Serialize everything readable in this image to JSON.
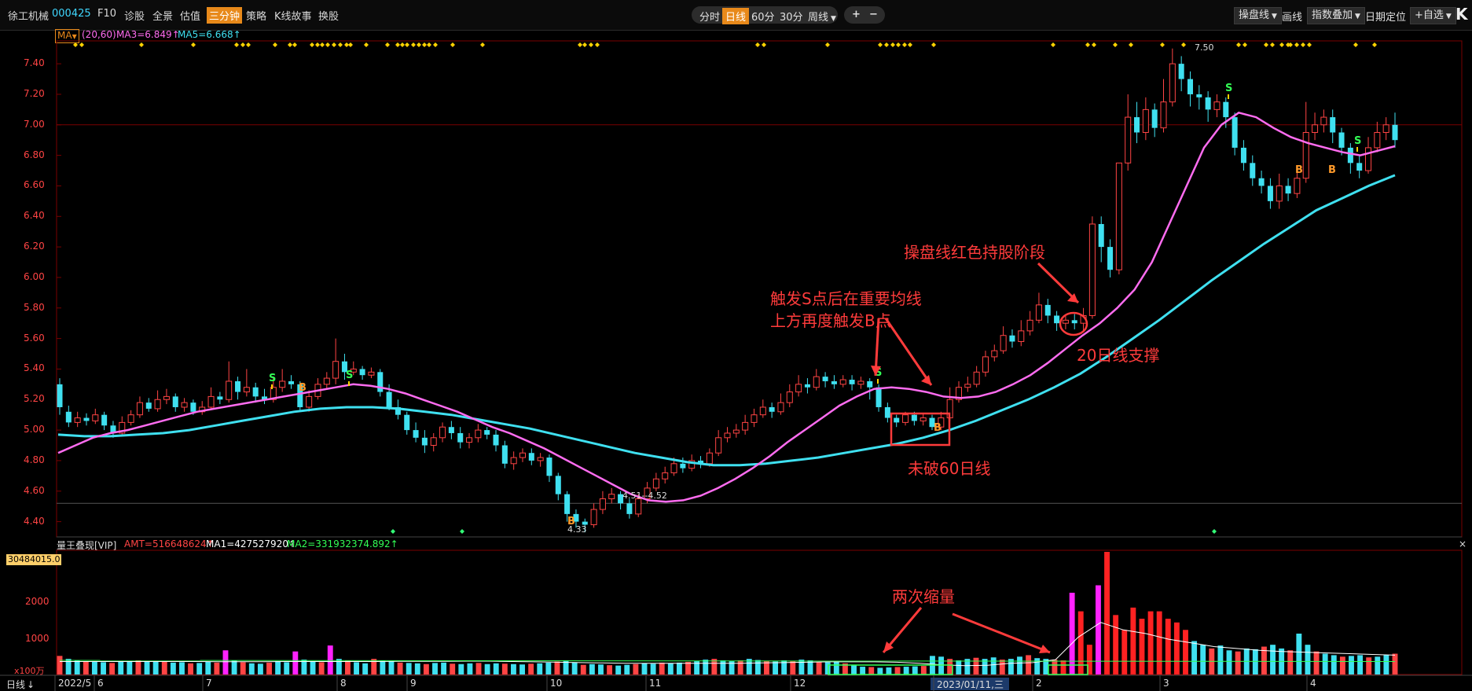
{
  "toolbar": {
    "stock_name": "徐工机械",
    "stock_code": "000425",
    "items": [
      "F10",
      "诊股",
      "全景",
      "估值",
      "三分钟",
      "策略",
      "K线故事",
      "换股"
    ],
    "active_item": "三分钟"
  },
  "period_bar": {
    "items": [
      "分时",
      "日线",
      "60分",
      "30分",
      "周线"
    ],
    "active": "日线",
    "dropdown_label": "周线",
    "zoom_in": "+",
    "zoom_out": "−"
  },
  "right_tools": {
    "draw_lines_label": "操盘线",
    "draw_label": "画线",
    "index_overlay_label": "指数叠加",
    "date_locate_label": "日期定位",
    "watchlist_label": "+自选"
  },
  "indicator_bar": {
    "ma_button": "MA",
    "params": "(20,60)",
    "ma3": "MA3=6.849↑",
    "ma5": "MA5=6.668↑"
  },
  "price_axis": [
    "7.40",
    "7.20",
    "7.00",
    "6.80",
    "6.60",
    "6.40",
    "6.20",
    "6.00",
    "5.80",
    "5.60",
    "5.40",
    "5.20",
    "5.00",
    "4.80",
    "4.60",
    "4.40"
  ],
  "price_labels": {
    "high": "7.50",
    "low": "4.33",
    "mid": "4.51--4.52"
  },
  "annotations": {
    "holding_stage": "操盘线红色持股阶段",
    "trigger_text_1": "触发S点后在重要均线",
    "trigger_text_2": "上方再度触发B点",
    "support_20": "20日线支撑",
    "not_break_60": "未破60日线",
    "two_shrink": "两次缩量"
  },
  "signal_letters": {
    "sell": "S",
    "buy": "B"
  },
  "volume_panel": {
    "title": "量王叠现[VIP]",
    "amt": "AMT=516648624↑",
    "ma1": "MA1=427527920↑",
    "ma2": "MA2=331932374.892↑",
    "badge": "30484015.0",
    "y_labels": [
      "2000",
      "1000"
    ],
    "unit": "x100万",
    "close_icon": "×"
  },
  "x_axis": {
    "mode_label": "日线",
    "labels": [
      "2022/5",
      "6",
      "7",
      "8",
      "9",
      "10",
      "11",
      "12",
      "2023/01/11,三",
      "2",
      "3",
      "4"
    ]
  },
  "colors": {
    "up": "#ff4444",
    "down": "#3fe0f0",
    "ma20": "#ff6cf0",
    "ma60": "#3fe0f0",
    "grid": "#7a0000",
    "annotation": "#ff3b3b"
  },
  "chart_data": {
    "type": "candlestick",
    "price_range": [
      4.3,
      7.55
    ],
    "ma_periods": [
      20,
      60
    ],
    "candles": [
      [
        5.3,
        5.15,
        5.34,
        5.1
      ],
      [
        5.12,
        5.05,
        5.16,
        5.02
      ],
      [
        5.05,
        5.08,
        5.12,
        5.02
      ],
      [
        5.08,
        5.06,
        5.11,
        5.03
      ],
      [
        5.06,
        5.1,
        5.14,
        5.04
      ],
      [
        5.1,
        5.03,
        5.12,
        5.0
      ],
      [
        5.03,
        4.98,
        5.06,
        4.95
      ],
      [
        4.98,
        5.05,
        5.09,
        4.96
      ],
      [
        5.05,
        5.1,
        5.13,
        5.03
      ],
      [
        5.1,
        5.18,
        5.22,
        5.08
      ],
      [
        5.18,
        5.14,
        5.21,
        5.12
      ],
      [
        5.14,
        5.2,
        5.26,
        5.12
      ],
      [
        5.2,
        5.22,
        5.27,
        5.17
      ],
      [
        5.22,
        5.15,
        5.24,
        5.12
      ],
      [
        5.15,
        5.18,
        5.21,
        5.12
      ],
      [
        5.18,
        5.12,
        5.2,
        5.1
      ],
      [
        5.12,
        5.15,
        5.19,
        5.1
      ],
      [
        5.15,
        5.22,
        5.28,
        5.13
      ],
      [
        5.22,
        5.2,
        5.25,
        5.17
      ],
      [
        5.2,
        5.32,
        5.45,
        5.18
      ],
      [
        5.32,
        5.25,
        5.35,
        5.2
      ],
      [
        5.25,
        5.28,
        5.4,
        5.22
      ],
      [
        5.28,
        5.22,
        5.31,
        5.18
      ],
      [
        5.22,
        5.2,
        5.27,
        5.17
      ],
      [
        5.2,
        5.28,
        5.34,
        5.18
      ],
      [
        5.28,
        5.32,
        5.4,
        5.25
      ],
      [
        5.32,
        5.3,
        5.36,
        5.27
      ],
      [
        5.3,
        5.15,
        5.32,
        5.12
      ],
      [
        5.15,
        5.22,
        5.26,
        5.12
      ],
      [
        5.22,
        5.3,
        5.34,
        5.2
      ],
      [
        5.3,
        5.34,
        5.38,
        5.27
      ],
      [
        5.34,
        5.45,
        5.6,
        5.3
      ],
      [
        5.45,
        5.38,
        5.5,
        5.33
      ],
      [
        5.38,
        5.4,
        5.45,
        5.36
      ],
      [
        5.4,
        5.36,
        5.42,
        5.33
      ],
      [
        5.36,
        5.38,
        5.41,
        5.34
      ],
      [
        5.38,
        5.25,
        5.4,
        5.22
      ],
      [
        5.25,
        5.15,
        5.3,
        5.13
      ],
      [
        5.15,
        5.1,
        5.2,
        5.07
      ],
      [
        5.1,
        5.0,
        5.12,
        4.97
      ],
      [
        5.0,
        4.95,
        5.05,
        4.92
      ],
      [
        4.95,
        4.9,
        5.0,
        4.85
      ],
      [
        4.9,
        4.95,
        4.98,
        4.86
      ],
      [
        4.95,
        5.02,
        5.05,
        4.92
      ],
      [
        5.02,
        4.98,
        5.06,
        4.94
      ],
      [
        4.98,
        4.92,
        5.02,
        4.88
      ],
      [
        4.92,
        4.95,
        4.98,
        4.88
      ],
      [
        4.95,
        5.0,
        5.04,
        4.92
      ],
      [
        5.0,
        4.97,
        5.02,
        4.94
      ],
      [
        4.97,
        4.9,
        5.0,
        4.86
      ],
      [
        4.9,
        4.78,
        4.93,
        4.75
      ],
      [
        4.78,
        4.82,
        4.86,
        4.74
      ],
      [
        4.82,
        4.85,
        4.88,
        4.79
      ],
      [
        4.85,
        4.8,
        4.88,
        4.77
      ],
      [
        4.8,
        4.82,
        4.85,
        4.76
      ],
      [
        4.82,
        4.7,
        4.84,
        4.66
      ],
      [
        4.7,
        4.58,
        4.72,
        4.54
      ],
      [
        4.58,
        4.45,
        4.6,
        4.4
      ],
      [
        4.45,
        4.4,
        4.48,
        4.36
      ],
      [
        4.4,
        4.38,
        4.42,
        4.33
      ],
      [
        4.38,
        4.48,
        4.52,
        4.36
      ],
      [
        4.48,
        4.55,
        4.6,
        4.45
      ],
      [
        4.55,
        4.58,
        4.62,
        4.52
      ],
      [
        4.58,
        4.52,
        4.6,
        4.48
      ],
      [
        4.52,
        4.45,
        4.55,
        4.42
      ],
      [
        4.45,
        4.55,
        4.58,
        4.43
      ],
      [
        4.55,
        4.62,
        4.66,
        4.52
      ],
      [
        4.62,
        4.68,
        4.72,
        4.6
      ],
      [
        4.68,
        4.72,
        4.76,
        4.65
      ],
      [
        4.72,
        4.78,
        4.82,
        4.7
      ],
      [
        4.78,
        4.75,
        4.82,
        4.72
      ],
      [
        4.75,
        4.8,
        4.84,
        4.73
      ],
      [
        4.8,
        4.78,
        4.83,
        4.75
      ],
      [
        4.78,
        4.85,
        4.88,
        4.76
      ],
      [
        4.85,
        4.95,
        5.0,
        4.83
      ],
      [
        4.95,
        4.98,
        5.02,
        4.92
      ],
      [
        4.98,
        5.0,
        5.04,
        4.95
      ],
      [
        5.0,
        5.05,
        5.1,
        4.97
      ],
      [
        5.05,
        5.1,
        5.14,
        5.02
      ],
      [
        5.1,
        5.15,
        5.2,
        5.08
      ],
      [
        5.15,
        5.12,
        5.18,
        5.08
      ],
      [
        5.12,
        5.18,
        5.24,
        5.1
      ],
      [
        5.18,
        5.25,
        5.3,
        5.15
      ],
      [
        5.25,
        5.3,
        5.36,
        5.22
      ],
      [
        5.3,
        5.28,
        5.34,
        5.24
      ],
      [
        5.28,
        5.35,
        5.4,
        5.26
      ],
      [
        5.35,
        5.32,
        5.38,
        5.28
      ],
      [
        5.32,
        5.3,
        5.36,
        5.27
      ],
      [
        5.3,
        5.33,
        5.36,
        5.28
      ],
      [
        5.33,
        5.3,
        5.36,
        5.26
      ],
      [
        5.3,
        5.32,
        5.35,
        5.27
      ],
      [
        5.32,
        5.28,
        5.34,
        5.2
      ],
      [
        5.28,
        5.15,
        5.3,
        5.12
      ],
      [
        5.15,
        5.08,
        5.18,
        5.05
      ],
      [
        5.08,
        5.05,
        5.1,
        5.02
      ],
      [
        5.05,
        5.1,
        5.12,
        5.03
      ],
      [
        5.1,
        5.06,
        5.12,
        5.03
      ],
      [
        5.06,
        5.08,
        5.11,
        5.03
      ],
      [
        5.08,
        5.02,
        5.1,
        5.0
      ],
      [
        5.02,
        5.08,
        5.12,
        5.0
      ],
      [
        5.08,
        5.2,
        5.28,
        5.06
      ],
      [
        5.2,
        5.28,
        5.32,
        5.18
      ],
      [
        5.28,
        5.3,
        5.35,
        5.25
      ],
      [
        5.3,
        5.38,
        5.42,
        5.28
      ],
      [
        5.38,
        5.48,
        5.52,
        5.35
      ],
      [
        5.48,
        5.52,
        5.56,
        5.45
      ],
      [
        5.52,
        5.62,
        5.68,
        5.5
      ],
      [
        5.62,
        5.58,
        5.66,
        5.54
      ],
      [
        5.58,
        5.65,
        5.72,
        5.55
      ],
      [
        5.65,
        5.72,
        5.78,
        5.62
      ],
      [
        5.72,
        5.82,
        5.9,
        5.7
      ],
      [
        5.82,
        5.75,
        5.86,
        5.7
      ],
      [
        5.75,
        5.7,
        5.78,
        5.65
      ],
      [
        5.7,
        5.72,
        5.76,
        5.66
      ],
      [
        5.72,
        5.7,
        5.76,
        5.66
      ],
      [
        5.7,
        5.75,
        5.8,
        5.65
      ],
      [
        5.75,
        6.35,
        6.4,
        5.73
      ],
      [
        6.35,
        6.2,
        6.4,
        6.1
      ],
      [
        6.2,
        6.05,
        6.25,
        6.0
      ],
      [
        6.05,
        6.75,
        6.75,
        6.02
      ],
      [
        6.75,
        7.05,
        7.2,
        6.7
      ],
      [
        7.05,
        6.95,
        7.15,
        6.88
      ],
      [
        6.95,
        7.1,
        7.18,
        6.9
      ],
      [
        7.1,
        6.98,
        7.14,
        6.92
      ],
      [
        6.98,
        7.15,
        7.3,
        6.95
      ],
      [
        7.15,
        7.4,
        7.5,
        7.12
      ],
      [
        7.4,
        7.3,
        7.45,
        7.22
      ],
      [
        7.3,
        7.2,
        7.35,
        7.12
      ],
      [
        7.2,
        7.18,
        7.26,
        7.1
      ],
      [
        7.18,
        7.1,
        7.22,
        7.02
      ],
      [
        7.1,
        7.15,
        7.2,
        7.05
      ],
      [
        7.15,
        7.05,
        7.18,
        6.98
      ],
      [
        7.05,
        6.85,
        7.08,
        6.8
      ],
      [
        6.85,
        6.75,
        6.9,
        6.7
      ],
      [
        6.75,
        6.65,
        6.8,
        6.6
      ],
      [
        6.65,
        6.6,
        6.7,
        6.55
      ],
      [
        6.6,
        6.5,
        6.65,
        6.45
      ],
      [
        6.5,
        6.6,
        6.68,
        6.45
      ],
      [
        6.6,
        6.55,
        6.65,
        6.5
      ],
      [
        6.55,
        6.65,
        6.7,
        6.52
      ],
      [
        6.65,
        6.95,
        7.15,
        6.62
      ],
      [
        6.95,
        7.0,
        7.08,
        6.9
      ],
      [
        7.0,
        7.05,
        7.1,
        6.95
      ],
      [
        7.05,
        6.95,
        7.1,
        6.88
      ],
      [
        6.95,
        6.85,
        6.98,
        6.8
      ],
      [
        6.85,
        6.75,
        6.88,
        6.68
      ],
      [
        6.75,
        6.7,
        6.8,
        6.65
      ],
      [
        6.7,
        6.85,
        6.92,
        6.68
      ],
      [
        6.85,
        6.95,
        7.02,
        6.82
      ],
      [
        6.95,
        7.0,
        7.05,
        6.9
      ],
      [
        7.0,
        6.9,
        7.08,
        6.85
      ]
    ],
    "ma20": [
      4.85,
      4.9,
      4.95,
      4.98,
      5.0,
      5.03,
      5.06,
      5.09,
      5.12,
      5.14,
      5.16,
      5.18,
      5.2,
      5.22,
      5.24,
      5.26,
      5.28,
      5.3,
      5.29,
      5.27,
      5.24,
      5.2,
      5.16,
      5.12,
      5.07,
      5.02,
      4.98,
      4.93,
      4.88,
      4.82,
      4.76,
      4.7,
      4.64,
      4.58,
      4.54,
      4.53,
      4.54,
      4.57,
      4.62,
      4.68,
      4.75,
      4.83,
      4.92,
      5.0,
      5.08,
      5.16,
      5.22,
      5.27,
      5.28,
      5.27,
      5.25,
      5.22,
      5.21,
      5.22,
      5.25,
      5.3,
      5.36,
      5.44,
      5.53,
      5.62,
      5.7,
      5.8,
      5.92,
      6.1,
      6.35,
      6.6,
      6.85,
      7.0,
      7.08,
      7.05,
      6.98,
      6.92,
      6.88,
      6.85,
      6.82,
      6.8,
      6.83,
      6.86
    ],
    "ma60": [
      4.97,
      4.96,
      4.96,
      4.97,
      4.98,
      5.0,
      5.03,
      5.06,
      5.09,
      5.12,
      5.14,
      5.15,
      5.15,
      5.14,
      5.12,
      5.1,
      5.07,
      5.04,
      5.01,
      4.97,
      4.93,
      4.89,
      4.85,
      4.82,
      4.79,
      4.77,
      4.77,
      4.78,
      4.8,
      4.82,
      4.85,
      4.88,
      4.91,
      4.95,
      5.0,
      5.06,
      5.13,
      5.2,
      5.28,
      5.37,
      5.48,
      5.6,
      5.72,
      5.85,
      5.98,
      6.1,
      6.22,
      6.33,
      6.44,
      6.52,
      6.6,
      6.67
    ],
    "volume": {
      "max": 3300,
      "values": [
        500,
        420,
        380,
        350,
        360,
        330,
        310,
        340,
        360,
        380,
        340,
        360,
        350,
        320,
        330,
        300,
        310,
        340,
        320,
        650,
        380,
        330,
        300,
        290,
        320,
        360,
        330,
        620,
        400,
        350,
        330,
        780,
        420,
        380,
        330,
        300,
        420,
        380,
        350,
        320,
        310,
        300,
        280,
        310,
        320,
        290,
        280,
        300,
        310,
        280,
        300,
        290,
        280,
        270,
        290,
        300,
        320,
        350,
        380,
        330,
        260,
        280,
        270,
        250,
        240,
        260,
        280,
        300,
        290,
        320,
        300,
        320,
        340,
        360,
        400,
        420,
        380,
        360,
        380,
        420,
        390,
        360,
        350,
        380,
        360,
        400,
        380,
        340,
        330,
        350,
        300,
        250,
        210,
        200,
        180,
        190,
        200,
        210,
        220,
        230,
        500,
        480,
        420,
        380,
        420,
        450,
        420,
        460,
        400,
        420,
        480,
        520,
        440,
        420,
        400,
        380,
        2200,
        1700,
        800,
        2400,
        3300,
        1600,
        1200,
        1800,
        1500,
        1700,
        1700,
        1500,
        1400,
        1200,
        900,
        800,
        700,
        780,
        650,
        620,
        700,
        680,
        750,
        800,
        700,
        650,
        1100,
        800,
        620,
        560,
        520,
        480,
        500,
        520,
        460,
        480,
        520,
        560
      ],
      "ma_line": [
        350,
        350,
        350,
        350,
        350,
        350,
        350,
        345,
        345,
        345,
        350,
        350,
        350,
        350,
        350,
        355,
        355,
        355,
        360,
        360,
        350,
        340,
        330,
        320,
        310,
        300,
        300,
        300,
        300,
        300,
        300,
        310,
        320,
        330,
        340,
        340,
        340,
        330,
        300,
        260,
        240,
        250,
        300,
        320,
        400,
        1000,
        1400,
        1200,
        1100,
        950,
        850,
        750,
        700,
        650,
        620,
        600,
        580,
        560,
        540,
        520
      ]
    }
  }
}
